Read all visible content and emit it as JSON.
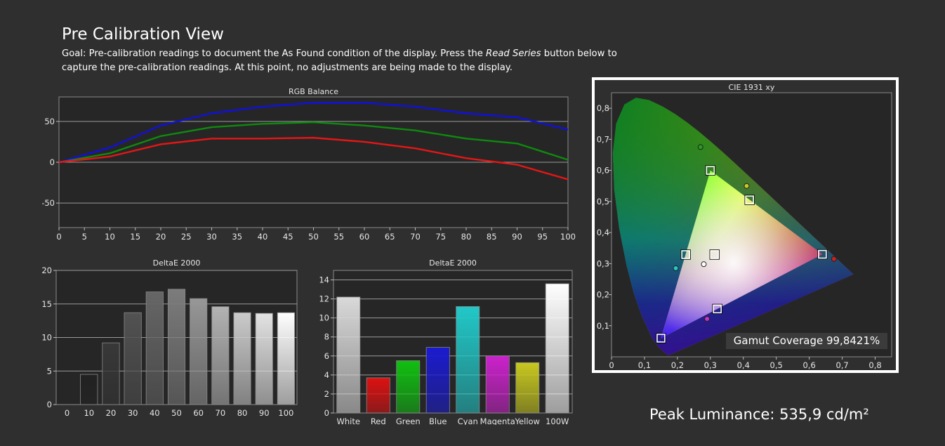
{
  "page": {
    "title": "Pre Calibration View",
    "goal_prefix": "Goal: Pre-calibration readings to document the As Found condition of the display. Press the ",
    "goal_italic": "Read Series",
    "goal_suffix": " button below to capture the pre-calibration readings. At this point, no adjustments are being made to the display.",
    "gamut_coverage": "Gamut Coverage 99,8421%",
    "peak_luminance": "Peak Luminance: 535,9 cd/m²"
  },
  "chart_data": [
    {
      "type": "line",
      "title": "RGB Balance",
      "x": [
        0,
        10,
        20,
        30,
        40,
        50,
        60,
        70,
        80,
        90,
        100
      ],
      "xticks": [
        0,
        5,
        10,
        15,
        20,
        25,
        30,
        35,
        40,
        45,
        50,
        55,
        60,
        65,
        70,
        75,
        80,
        85,
        90,
        95,
        100
      ],
      "yticks": [
        50,
        0,
        -50
      ],
      "xlim": [
        0,
        100
      ],
      "ylim": [
        -80,
        80
      ],
      "grid": true,
      "series": [
        {
          "color": "#1010e0",
          "values": [
            0,
            18,
            45,
            60,
            68,
            73,
            73,
            68,
            60,
            55,
            40
          ]
        },
        {
          "color": "#0e8a0e",
          "values": [
            0,
            11,
            32,
            43,
            47,
            49,
            45,
            39,
            29,
            23,
            3
          ]
        },
        {
          "color": "#e51616",
          "values": [
            0,
            7,
            22,
            29,
            29,
            30,
            25,
            17,
            5,
            -3,
            -21
          ]
        }
      ]
    },
    {
      "type": "bar",
      "title": "DeltaE 2000",
      "categories": [
        "0",
        "10",
        "20",
        "30",
        "40",
        "50",
        "60",
        "70",
        "80",
        "90",
        "100"
      ],
      "values": [
        0,
        4.5,
        9.2,
        13.7,
        16.8,
        17.2,
        15.8,
        14.6,
        13.7,
        13.6,
        13.7
      ],
      "colors": [
        "#000000",
        "#222222",
        "#383838",
        "#525252",
        "#666666",
        "#7c7c7c",
        "#979797",
        "#b3b3b3",
        "#cbcbcb",
        "#e3e3e3",
        "#ffffff"
      ],
      "yticks": [
        0,
        5,
        10,
        15,
        20
      ],
      "ylim": [
        0,
        20
      ],
      "grid": true
    },
    {
      "type": "bar",
      "title": "DeltaE 2000",
      "categories": [
        "White",
        "Red",
        "Green",
        "Blue",
        "Cyan",
        "Magenta",
        "Yellow",
        "100W"
      ],
      "values": [
        12.2,
        3.7,
        5.5,
        6.9,
        11.2,
        6.0,
        5.3,
        13.6
      ],
      "colors": [
        "#d9d9d9",
        "#dd1111",
        "#11c011",
        "#1b1bd0",
        "#22c8c8",
        "#cc22cc",
        "#c8c820",
        "#ffffff"
      ],
      "yticks": [
        0,
        2,
        4,
        6,
        8,
        10,
        12,
        14
      ],
      "ylim": [
        0,
        15
      ],
      "grid": true
    },
    {
      "type": "scatter",
      "title": "CIE 1931 xy",
      "xticks": [
        "0",
        "0,1",
        "0,2",
        "0,3",
        "0,4",
        "0,5",
        "0,6",
        "0,7",
        "0,8"
      ],
      "yticks": [
        "0,1",
        "0,2",
        "0,3",
        "0,4",
        "0,5",
        "0,6",
        "0,7",
        "0,8"
      ],
      "xlim": [
        0,
        0.85
      ],
      "ylim": [
        0,
        0.85
      ],
      "grid": true,
      "targets": [
        [
          0.64,
          0.33
        ],
        [
          0.3,
          0.6
        ],
        [
          0.15,
          0.06
        ],
        [
          0.225,
          0.329
        ],
        [
          0.321,
          0.154
        ],
        [
          0.419,
          0.505
        ],
        [
          0.3127,
          0.329
        ]
      ],
      "measured": [
        {
          "x": 0.675,
          "y": 0.315,
          "color": "#cc2020"
        },
        {
          "x": 0.27,
          "y": 0.675,
          "color": "#20a020"
        },
        {
          "x": 0.145,
          "y": 0.05,
          "color": "#2020cc"
        },
        {
          "x": 0.195,
          "y": 0.285,
          "color": "#20c8c8"
        },
        {
          "x": 0.29,
          "y": 0.122,
          "color": "#cc30cc"
        },
        {
          "x": 0.41,
          "y": 0.55,
          "color": "#c8c820"
        },
        {
          "x": 0.28,
          "y": 0.298,
          "color": "#ffffff"
        }
      ]
    }
  ]
}
